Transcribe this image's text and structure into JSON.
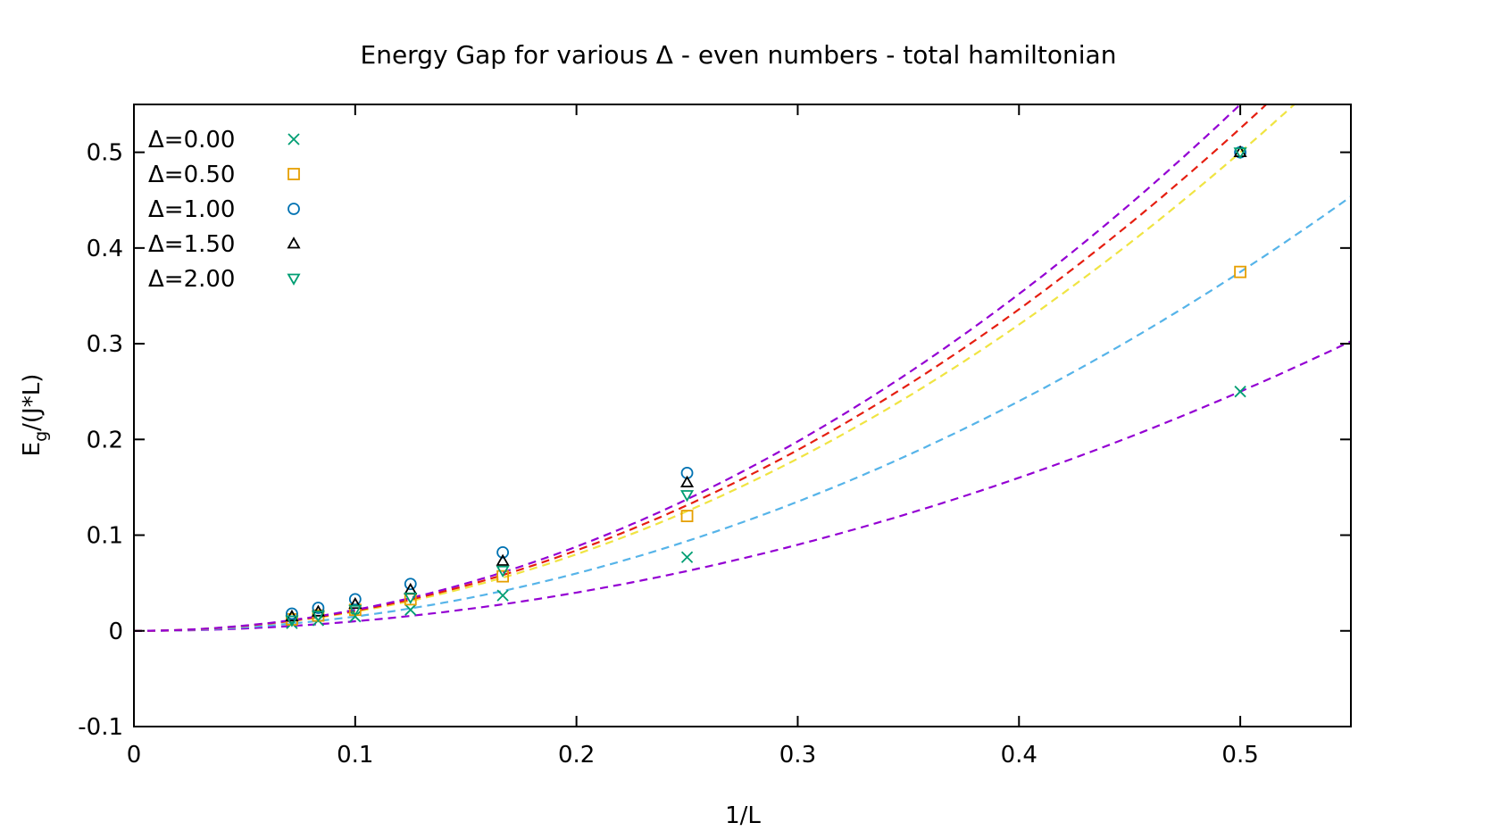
{
  "chart_data": {
    "type": "scatter",
    "title": "Energy Gap for various Δ - even numbers - total hamiltonian",
    "xlabel": "1/L",
    "ylabel_main": "E",
    "ylabel_sub": "g",
    "ylabel_tail": "/(J*L)",
    "xlim": [
      0,
      0.55
    ],
    "ylim": [
      -0.1,
      0.55
    ],
    "x_ticks": [
      {
        "value": 0,
        "label": "0"
      },
      {
        "value": 0.1,
        "label": "0.1"
      },
      {
        "value": 0.2,
        "label": "0.2"
      },
      {
        "value": 0.3,
        "label": "0.3"
      },
      {
        "value": 0.4,
        "label": "0.4"
      },
      {
        "value": 0.5,
        "label": "0.5"
      }
    ],
    "y_ticks": [
      {
        "value": -0.1,
        "label": "-0.1"
      },
      {
        "value": 0,
        "label": "0"
      },
      {
        "value": 0.1,
        "label": "0.1"
      },
      {
        "value": 0.2,
        "label": "0.2"
      },
      {
        "value": 0.3,
        "label": "0.3"
      },
      {
        "value": 0.4,
        "label": "0.4"
      },
      {
        "value": 0.5,
        "label": "0.5"
      }
    ],
    "grid": false,
    "legend_position": "top-left",
    "x": [
      0.5,
      0.25,
      0.1667,
      0.125,
      0.1,
      0.0833,
      0.0714
    ],
    "series": [
      {
        "name": "Δ=0.00",
        "marker": "x",
        "color": "#009e73",
        "y": [
          0.25,
          0.077,
          0.037,
          0.022,
          0.015,
          0.011,
          0.008
        ]
      },
      {
        "name": "Δ=0.50",
        "marker": "square",
        "color": "#e69f00",
        "y": [
          0.375,
          0.12,
          0.057,
          0.033,
          0.022,
          0.016,
          0.012
        ]
      },
      {
        "name": "Δ=1.00",
        "marker": "circle",
        "color": "#0072b2",
        "y": [
          0.5,
          0.165,
          0.082,
          0.049,
          0.033,
          0.024,
          0.018
        ]
      },
      {
        "name": "Δ=1.50",
        "marker": "triangle-up",
        "color": "#000000",
        "y": [
          0.5,
          0.155,
          0.073,
          0.043,
          0.028,
          0.02,
          0.015
        ]
      },
      {
        "name": "Δ=2.00",
        "marker": "triangle-down",
        "color": "#009e73",
        "y": [
          0.5,
          0.142,
          0.063,
          0.035,
          0.022,
          0.016,
          0.011
        ]
      }
    ],
    "fit_curves": [
      {
        "color": "#9400d3",
        "quadratic_coefficient": 1.0
      },
      {
        "color": "#56b4e9",
        "quadratic_coefficient": 1.5
      },
      {
        "color": "#f0e442",
        "quadratic_coefficient": 2.0,
        "linear_coefficient": 0.0
      },
      {
        "color": "#e51e10",
        "quadratic_coefficient": 2.1,
        "linear_coefficient": -0.05
      },
      {
        "color": "#9400d3",
        "quadratic_coefficient": 2.2,
        "linear_coefficient": -0.1
      }
    ]
  }
}
